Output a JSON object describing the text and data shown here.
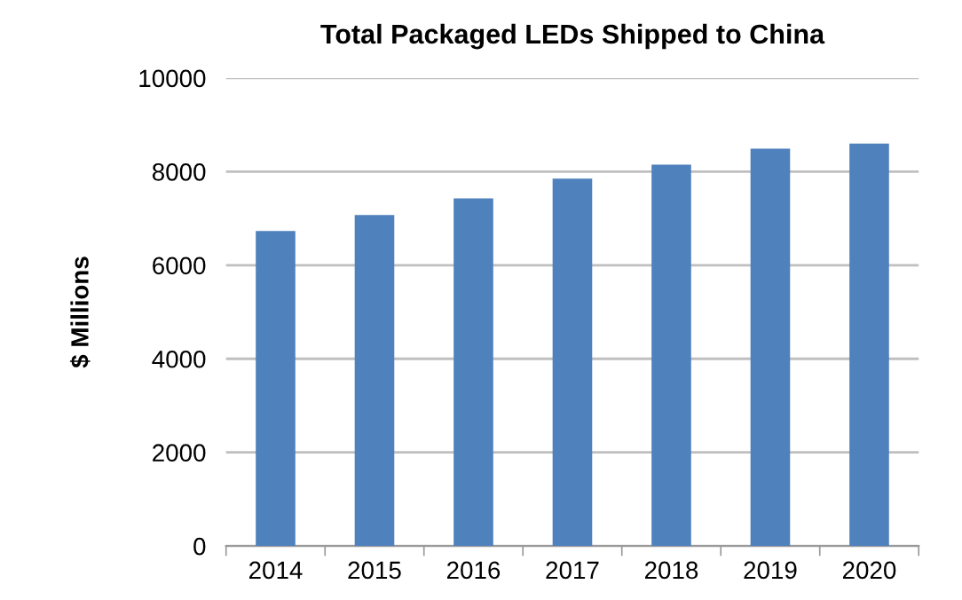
{
  "chart_data": {
    "type": "bar",
    "title": "Total Packaged LEDs Shipped to China",
    "ylabel": "$ Millions",
    "categories": [
      "2014",
      "2015",
      "2016",
      "2017",
      "2018",
      "2019",
      "2020"
    ],
    "values": [
      6730,
      7070,
      7430,
      7850,
      8150,
      8490,
      8600
    ],
    "color": "#4f81bd",
    "ylim": [
      0,
      10000
    ],
    "yticks": [
      0,
      2000,
      4000,
      6000,
      8000,
      10000
    ],
    "grid": "y"
  }
}
